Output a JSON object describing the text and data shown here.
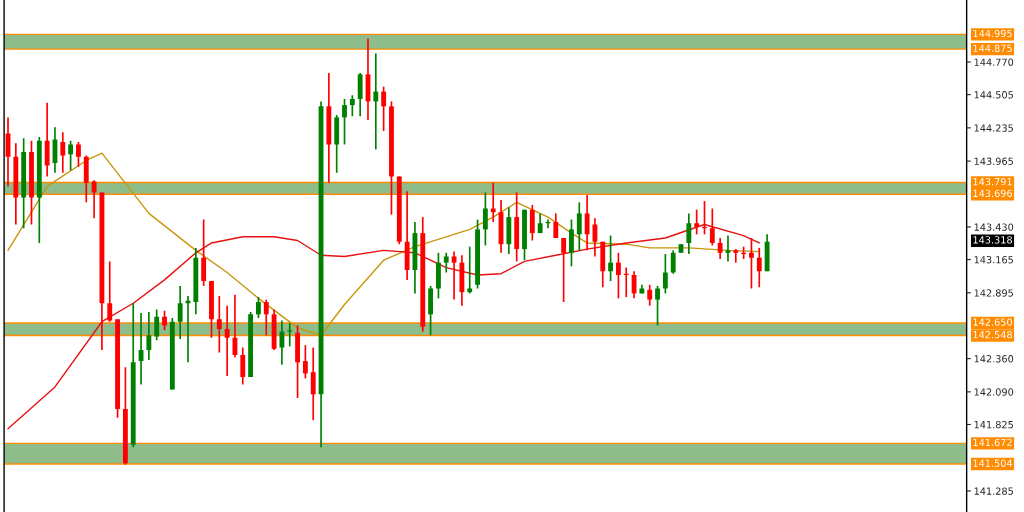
{
  "chart_data": {
    "type": "candlestick",
    "categories": [
      null,
      null,
      null,
      null,
      null,
      null,
      null,
      null,
      null,
      null,
      null,
      null,
      null,
      null,
      null,
      null,
      null,
      null,
      null,
      null,
      null,
      null,
      null,
      null,
      null,
      null,
      null,
      null,
      null,
      null,
      null,
      null,
      null,
      null,
      null,
      null,
      null,
      null,
      null,
      null,
      null,
      null,
      null,
      null,
      null,
      null,
      null,
      null,
      null,
      null,
      null,
      null,
      null,
      null,
      null,
      null,
      null,
      null,
      null,
      null,
      null,
      null,
      null,
      null,
      null,
      null,
      null,
      null,
      null,
      null,
      null,
      null,
      null,
      null,
      null,
      null,
      null,
      null,
      null,
      null,
      null,
      null,
      null,
      null,
      null,
      null,
      null,
      null,
      null,
      null,
      null,
      null,
      null,
      null,
      null,
      null,
      null,
      null,
      null,
      null,
      null,
      null,
      null,
      null,
      null,
      null,
      null,
      null,
      null,
      null,
      null,
      null,
      null,
      null,
      null,
      null,
      null,
      null,
      null,
      null,
      null,
      null,
      null
    ],
    "ohlc": [
      [
        144.19,
        144.32,
        143.76,
        144.0
      ],
      [
        144.0,
        144.11,
        143.45,
        143.67
      ],
      [
        143.67,
        144.15,
        143.42,
        144.04
      ],
      [
        144.04,
        144.13,
        143.45,
        143.67
      ],
      [
        143.67,
        144.16,
        143.3,
        144.13
      ],
      [
        144.13,
        144.44,
        143.84,
        143.93
      ],
      [
        143.95,
        144.24,
        143.87,
        144.14
      ],
      [
        144.12,
        144.2,
        143.87,
        144.01
      ],
      [
        144.02,
        144.13,
        143.89,
        144.1
      ],
      [
        144.1,
        144.12,
        143.92,
        144.0
      ],
      [
        144.0,
        144.01,
        143.63,
        143.79
      ],
      [
        143.8,
        143.81,
        143.5,
        143.71
      ],
      [
        143.71,
        143.71,
        142.43,
        142.81
      ],
      [
        142.81,
        143.15,
        142.66,
        142.67
      ],
      [
        142.68,
        142.68,
        141.88,
        141.95
      ],
      [
        141.95,
        142.29,
        141.5,
        141.51
      ],
      [
        141.66,
        142.81,
        141.64,
        142.33
      ],
      [
        142.34,
        142.73,
        142.15,
        142.43
      ],
      [
        142.43,
        142.74,
        142.35,
        142.55
      ],
      [
        142.54,
        142.76,
        142.51,
        142.7
      ],
      [
        142.7,
        142.75,
        142.59,
        142.63
      ],
      [
        142.11,
        142.69,
        142.11,
        142.66
      ],
      [
        142.66,
        142.95,
        142.52,
        142.81
      ],
      [
        142.81,
        142.87,
        142.33,
        142.83
      ],
      [
        142.82,
        143.26,
        142.72,
        143.18
      ],
      [
        143.18,
        143.49,
        142.95,
        142.99
      ],
      [
        142.99,
        142.99,
        142.53,
        142.68
      ],
      [
        142.68,
        142.87,
        142.41,
        142.6
      ],
      [
        142.6,
        142.79,
        142.22,
        142.53
      ],
      [
        142.53,
        142.88,
        142.37,
        142.39
      ],
      [
        142.39,
        142.45,
        142.15,
        142.21
      ],
      [
        142.21,
        142.74,
        142.21,
        142.72
      ],
      [
        142.72,
        142.86,
        142.69,
        142.82
      ],
      [
        142.82,
        142.84,
        142.55,
        142.72
      ],
      [
        142.72,
        142.76,
        142.43,
        142.44
      ],
      [
        142.45,
        142.67,
        142.31,
        142.58
      ],
      [
        142.58,
        142.65,
        142.46,
        142.59
      ],
      [
        142.57,
        142.63,
        142.04,
        142.33
      ],
      [
        142.34,
        142.47,
        142.2,
        142.24
      ],
      [
        142.25,
        142.45,
        141.86,
        142.07
      ],
      [
        142.07,
        144.45,
        141.64,
        144.41
      ],
      [
        144.41,
        144.68,
        143.79,
        144.1
      ],
      [
        144.1,
        144.34,
        143.87,
        144.32
      ],
      [
        144.32,
        144.47,
        144.1,
        144.42
      ],
      [
        144.42,
        144.5,
        144.33,
        144.47
      ],
      [
        144.47,
        144.68,
        144.33,
        144.67
      ],
      [
        144.67,
        144.96,
        144.3,
        144.45
      ],
      [
        144.45,
        144.84,
        144.06,
        144.53
      ],
      [
        144.53,
        144.57,
        144.21,
        144.41
      ],
      [
        144.41,
        144.45,
        143.53,
        143.84
      ],
      [
        143.84,
        143.84,
        143.29,
        143.31
      ],
      [
        143.31,
        143.72,
        143.0,
        143.08
      ],
      [
        143.08,
        143.47,
        142.89,
        143.38
      ],
      [
        143.38,
        143.51,
        142.58,
        142.62
      ],
      [
        142.72,
        142.95,
        142.55,
        142.93
      ],
      [
        142.93,
        143.22,
        142.85,
        143.14
      ],
      [
        143.14,
        143.22,
        143.06,
        143.19
      ],
      [
        143.19,
        143.23,
        142.84,
        143.14
      ],
      [
        143.14,
        143.2,
        142.79,
        142.9
      ],
      [
        142.9,
        143.27,
        142.89,
        142.93
      ],
      [
        142.96,
        143.49,
        142.93,
        143.41
      ],
      [
        143.41,
        143.71,
        143.28,
        143.58
      ],
      [
        143.58,
        143.79,
        143.47,
        143.55
      ],
      [
        143.55,
        143.65,
        143.22,
        143.29
      ],
      [
        143.29,
        143.59,
        143.21,
        143.51
      ],
      [
        143.51,
        143.71,
        143.15,
        143.25
      ],
      [
        143.25,
        143.57,
        143.16,
        143.57
      ],
      [
        143.57,
        143.61,
        143.32,
        143.38
      ],
      [
        143.38,
        143.54,
        143.38,
        143.46
      ],
      [
        143.46,
        143.49,
        143.42,
        143.47
      ],
      [
        143.47,
        143.54,
        143.34,
        143.34
      ],
      [
        143.34,
        143.34,
        142.82,
        143.22
      ],
      [
        143.22,
        143.49,
        143.11,
        143.41
      ],
      [
        143.37,
        143.63,
        143.24,
        143.54
      ],
      [
        143.54,
        143.69,
        143.24,
        143.37
      ],
      [
        143.45,
        143.5,
        143.19,
        143.31
      ],
      [
        143.31,
        143.31,
        142.94,
        143.07
      ],
      [
        143.07,
        143.36,
        142.99,
        143.14
      ],
      [
        143.14,
        143.22,
        142.85,
        143.04
      ],
      [
        143.04,
        143.1,
        142.86,
        143.05
      ],
      [
        143.04,
        143.07,
        142.85,
        142.89
      ],
      [
        142.89,
        142.96,
        142.89,
        142.93
      ],
      [
        142.92,
        142.96,
        142.79,
        142.84
      ],
      [
        142.84,
        142.95,
        142.63,
        142.93
      ],
      [
        142.93,
        143.21,
        142.89,
        143.06
      ],
      [
        143.06,
        143.24,
        143.05,
        143.22
      ],
      [
        143.22,
        143.29,
        143.22,
        143.29
      ],
      [
        143.3,
        143.54,
        143.21,
        143.46
      ],
      [
        143.46,
        143.57,
        143.37,
        143.43
      ],
      [
        143.43,
        143.64,
        143.37,
        143.42
      ],
      [
        143.42,
        143.58,
        143.28,
        143.3
      ],
      [
        143.3,
        143.34,
        143.17,
        143.22
      ],
      [
        143.22,
        143.36,
        143.15,
        143.24
      ],
      [
        143.24,
        143.25,
        143.14,
        143.22
      ],
      [
        143.22,
        143.27,
        143.17,
        143.21
      ],
      [
        143.22,
        143.34,
        142.93,
        143.18
      ],
      [
        143.18,
        143.26,
        142.94,
        143.07
      ],
      [
        143.07,
        143.37,
        143.07,
        143.31
      ],
      null,
      null,
      null,
      null,
      null,
      null,
      null,
      null,
      null,
      null,
      null,
      null,
      null,
      null,
      null,
      null,
      null,
      null,
      null,
      null,
      null,
      null,
      null,
      null,
      null
    ],
    "colors": [
      "#ff0000",
      "#ff0000",
      "#008000",
      "#ff0000",
      "#008000",
      "#ff0000",
      "#008000",
      "#ff0000",
      "#008000",
      "#ff0000",
      "#ff0000",
      "#ff0000",
      "#ff0000",
      "#ff0000",
      "#ff0000",
      "#ff0000",
      "#008000",
      "#008000",
      "#008000",
      "#008000",
      "#ff0000",
      "#008000",
      "#008000",
      "#008000",
      "#008000",
      "#ff0000",
      "#ff0000",
      "#ff0000",
      "#ff0000",
      "#ff0000",
      "#ff0000",
      "#008000",
      "#008000",
      "#ff0000",
      "#ff0000",
      "#008000",
      "#008000",
      "#ff0000",
      "#ff0000",
      "#ff0000",
      "#008000",
      "#ff0000",
      "#008000",
      "#008000",
      "#008000",
      "#008000",
      "#ff0000",
      "#008000",
      "#ff0000",
      "#ff0000",
      "#ff0000",
      "#ff0000",
      "#008000",
      "#ff0000",
      "#008000",
      "#008000",
      "#008000",
      "#ff0000",
      "#ff0000",
      "#008000",
      "#008000",
      "#008000",
      "#ff0000",
      "#ff0000",
      "#008000",
      "#ff0000",
      "#008000",
      "#ff0000",
      "#008000",
      "#008000",
      "#ff0000",
      "#ff0000",
      "#008000",
      "#008000",
      "#ff0000",
      "#ff0000",
      "#ff0000",
      "#008000",
      "#ff0000",
      "#ff0000",
      "#ff0000",
      "#008000",
      "#ff0000",
      "#008000",
      "#008000",
      "#008000",
      "#008000",
      "#008000",
      "#ff0000",
      "#ff0000",
      "#ff0000",
      "#ff0000",
      "#008000",
      "#ff0000",
      "#ff0000",
      "#ff0000",
      "#ff0000",
      "#008000",
      null,
      null,
      null,
      null,
      null,
      null,
      null,
      null,
      null,
      null,
      null,
      null,
      null,
      null,
      null,
      null,
      null,
      null,
      null,
      null,
      null,
      null,
      null,
      null,
      null
    ],
    "series": [
      {
        "type": "line",
        "color": "#c8960a",
        "values": [
          143.24,
          null,
          null,
          null,
          null,
          143.76,
          null,
          null,
          null,
          null,
          143.97,
          null,
          144.03,
          null,
          null,
          null,
          null,
          null,
          143.54,
          null,
          null,
          null,
          null,
          null,
          143.24,
          null,
          null,
          null,
          143.06,
          null,
          null,
          null,
          142.85,
          null,
          null,
          null,
          null,
          142.61,
          null,
          null,
          142.55,
          null,
          null,
          142.8,
          null,
          null,
          null,
          null,
          143.16,
          null,
          null,
          null,
          143.27,
          null,
          null,
          null,
          143.35,
          null,
          null,
          143.41,
          null,
          null,
          143.51,
          null,
          null,
          143.63,
          null,
          null,
          null,
          143.51,
          null,
          null,
          143.38,
          null,
          143.3,
          null,
          null,
          null,
          null,
          143.29,
          null,
          null,
          143.26,
          null,
          null,
          null,
          null,
          143.26,
          null,
          null,
          null,
          null,
          143.24,
          null,
          null,
          null,
          143.23,
          null,
          null,
          null,
          null,
          null,
          null,
          null,
          null,
          null,
          null,
          null,
          null,
          null,
          null,
          null,
          null,
          null,
          null,
          null,
          null,
          null,
          null,
          null,
          null,
          null,
          null
        ]
      },
      {
        "type": "line",
        "color": "#e81010",
        "values": [
          141.79,
          null,
          null,
          null,
          null,
          null,
          142.13,
          null,
          null,
          null,
          null,
          null,
          142.66,
          null,
          null,
          null,
          142.81,
          null,
          null,
          null,
          143.0,
          null,
          null,
          null,
          143.22,
          null,
          143.3,
          null,
          null,
          null,
          143.35,
          null,
          null,
          null,
          143.35,
          null,
          null,
          143.32,
          null,
          null,
          143.2,
          null,
          null,
          143.19,
          null,
          null,
          null,
          null,
          143.24,
          null,
          null,
          null,
          143.22,
          null,
          null,
          null,
          143.1,
          null,
          null,
          null,
          143.04,
          null,
          null,
          143.05,
          null,
          null,
          143.15,
          null,
          null,
          null,
          143.2,
          null,
          null,
          null,
          143.25,
          null,
          null,
          null,
          null,
          143.3,
          null,
          null,
          null,
          null,
          143.34,
          null,
          null,
          null,
          null,
          143.45,
          null,
          null,
          null,
          null,
          143.36,
          null,
          143.3,
          null,
          null,
          null,
          null,
          null,
          null,
          null,
          null,
          null,
          null,
          null,
          null,
          null,
          null,
          null,
          null,
          null,
          null,
          null,
          null,
          null,
          null,
          null,
          null,
          null,
          null
        ]
      }
    ],
    "ylim": [
      141.114,
      145.274
    ],
    "yticks": [
      {
        "value": 141.285,
        "label": "141.285"
      },
      {
        "value": 141.825,
        "label": "141.825"
      },
      {
        "value": 142.09,
        "label": "142.090"
      },
      {
        "value": 142.36,
        "label": "142.360"
      },
      {
        "value": 142.895,
        "label": "142.895"
      },
      {
        "value": 143.165,
        "label": "143.165"
      },
      {
        "value": 143.43,
        "label": "143.430"
      },
      {
        "value": 143.965,
        "label": "143.965"
      },
      {
        "value": 144.235,
        "label": "144.235"
      },
      {
        "value": 144.505,
        "label": "144.505"
      },
      {
        "value": 144.77,
        "label": "144.770"
      }
    ],
    "tick_labels": "y",
    "bands": [
      {
        "axis": "y",
        "from": 144.875,
        "to": 144.995,
        "color": "#8fbc8b"
      },
      {
        "axis": "y",
        "from": 143.696,
        "to": 143.791,
        "color": "#8fbc8b"
      },
      {
        "axis": "y",
        "from": 142.548,
        "to": 142.65,
        "color": "#8fbc8b"
      },
      {
        "axis": "y",
        "from": 141.504,
        "to": 141.672,
        "color": "#8fbc8b"
      }
    ],
    "ref_lines": [
      {
        "axis": "y",
        "value": 144.995,
        "label": "144.995",
        "color": "#ff8c00"
      },
      {
        "axis": "y",
        "value": 144.875,
        "label": "144.875",
        "color": "#ff8c00"
      },
      {
        "axis": "y",
        "value": 143.791,
        "label": "143.791",
        "color": "#ff8c00"
      },
      {
        "axis": "y",
        "value": 143.696,
        "label": "143.696",
        "color": "#ff8c00"
      },
      {
        "axis": "y",
        "value": 142.65,
        "label": "142.650",
        "color": "#ff8c00"
      },
      {
        "axis": "y",
        "value": 142.548,
        "label": "142.548",
        "color": "#ff8c00"
      },
      {
        "axis": "y",
        "value": 141.672,
        "label": "141.672",
        "color": "#ff8c00"
      },
      {
        "axis": "y",
        "value": 141.504,
        "label": "141.504",
        "color": "#ff8c00"
      }
    ],
    "annotations": [
      "143.318"
    ],
    "grid": false,
    "legend": false
  }
}
